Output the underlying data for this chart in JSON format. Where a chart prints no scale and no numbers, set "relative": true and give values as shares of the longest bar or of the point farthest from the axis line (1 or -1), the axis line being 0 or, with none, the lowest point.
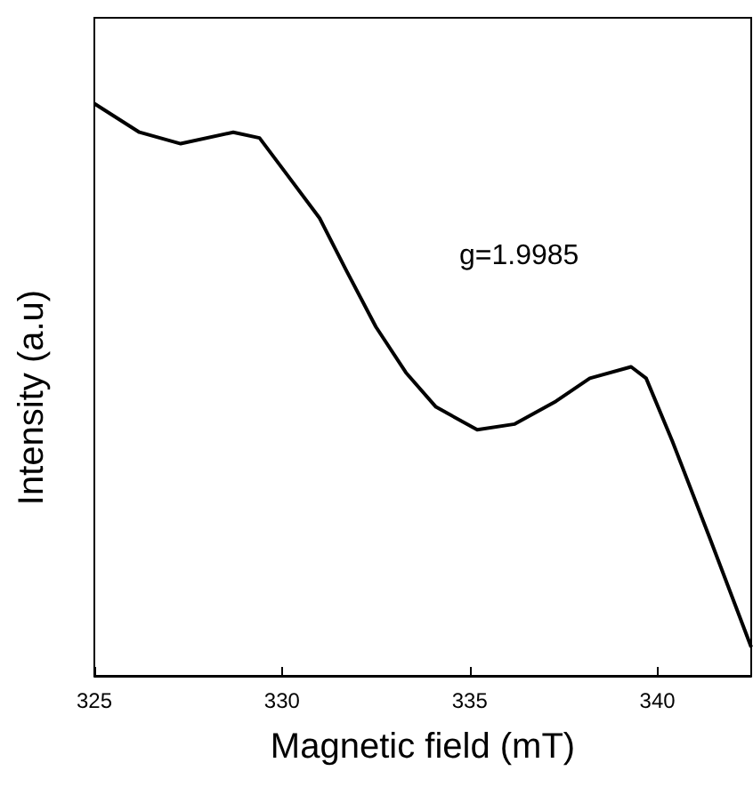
{
  "chart_data": {
    "type": "line",
    "relative": true,
    "xlabel": "Magnetic field (mT)",
    "ylabel": "Intensity (a.u)",
    "annotations": [
      "g=1.9985"
    ],
    "xlim": [
      325,
      342.5
    ],
    "xticks": [
      325,
      330,
      335,
      340
    ],
    "marker": "none",
    "line_style": "solid",
    "series": [
      {
        "color": "#000000",
        "x": [
          325,
          326.2,
          327.3,
          328.7,
          329.4,
          330.2,
          331.0,
          331.7,
          332.5,
          333.3,
          334.1,
          335.2,
          336.2,
          337.3,
          338.2,
          339.3,
          339.7,
          340.4,
          341.4,
          342.5
        ],
        "values": [
          1,
          0.95,
          0.93,
          0.95,
          0.94,
          0.87,
          0.8,
          0.71,
          0.61,
          0.53,
          0.47,
          0.43,
          0.44,
          0.48,
          0.52,
          0.54,
          0.52,
          0.41,
          0.24,
          0.05
        ]
      }
    ]
  }
}
